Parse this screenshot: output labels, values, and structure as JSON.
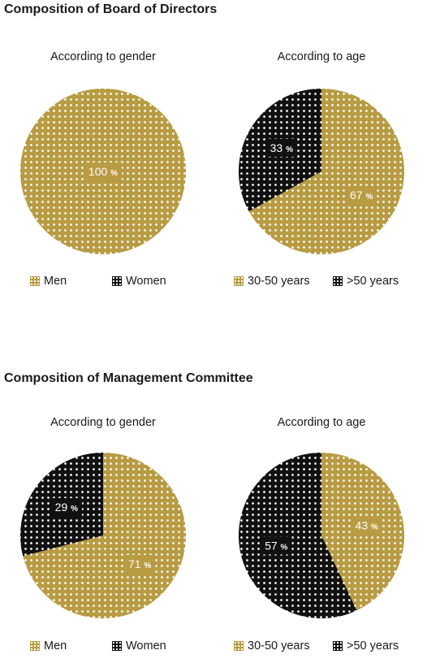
{
  "colors": {
    "gold": "#b89b42",
    "black": "#111111",
    "dot": "#ffffff"
  },
  "sections": [
    {
      "title": "Composition of Board of Directors"
    },
    {
      "title": "Composition of Management Committee"
    }
  ],
  "chart_data": [
    {
      "type": "pie",
      "section": 0,
      "title": "According to gender",
      "slices": [
        {
          "label": "Men",
          "value": 100,
          "display": "100",
          "color": "#b89b42"
        },
        {
          "label": "Women",
          "value": 0,
          "display": "",
          "color": "#111111"
        }
      ],
      "legend": [
        "Men",
        "Women"
      ],
      "legend_position": "bottom"
    },
    {
      "type": "pie",
      "section": 0,
      "title": "According to age",
      "slices": [
        {
          "label": "30-50 years",
          "value": 67,
          "display": "67",
          "color": "#b89b42"
        },
        {
          "label": ">50 years",
          "value": 33,
          "display": "33",
          "color": "#111111"
        }
      ],
      "legend": [
        "30-50 years",
        ">50 years"
      ],
      "legend_position": "bottom"
    },
    {
      "type": "pie",
      "section": 1,
      "title": "According to gender",
      "slices": [
        {
          "label": "Men",
          "value": 71,
          "display": "71",
          "color": "#b89b42"
        },
        {
          "label": "Women",
          "value": 29,
          "display": "29",
          "color": "#111111"
        }
      ],
      "legend": [
        "Men",
        "Women"
      ],
      "legend_position": "bottom"
    },
    {
      "type": "pie",
      "section": 1,
      "title": "According to age",
      "slices": [
        {
          "label": "30-50 years",
          "value": 43,
          "display": "43",
          "color": "#b89b42"
        },
        {
          "label": ">50 years",
          "value": 57,
          "display": "57",
          "color": "#111111"
        }
      ],
      "legend": [
        "30-50 years",
        ">50 years"
      ],
      "legend_position": "bottom"
    }
  ],
  "percent_sign": "%"
}
